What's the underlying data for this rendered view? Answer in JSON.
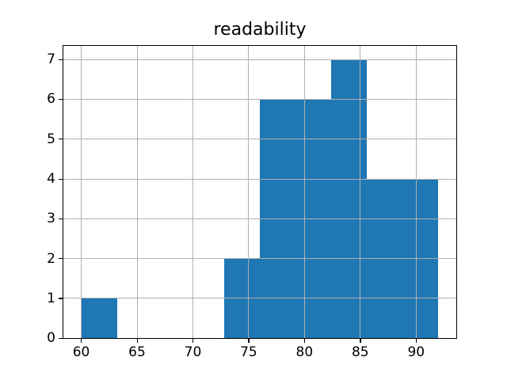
{
  "chart_data": {
    "type": "bar",
    "subtype": "histogram",
    "title": "readability",
    "xlabel": "",
    "ylabel": "",
    "bin_edges": [
      60,
      63.2,
      66.4,
      69.6,
      72.8,
      76,
      79.2,
      82.4,
      85.6,
      88.8,
      92
    ],
    "counts": [
      1,
      0,
      0,
      0,
      2,
      6,
      6,
      7,
      4,
      4
    ],
    "x_ticks": [
      60,
      65,
      70,
      75,
      80,
      85,
      90
    ],
    "y_ticks": [
      0,
      1,
      2,
      3,
      4,
      5,
      6,
      7
    ],
    "xlim": [
      58.4,
      93.6
    ],
    "ylim": [
      0,
      7.35
    ],
    "grid": true,
    "legend": false,
    "bar_color": "#1f77b4",
    "grid_color": "#b0b0b0",
    "spine_color": "#000000",
    "background_color": "#ffffff"
  }
}
